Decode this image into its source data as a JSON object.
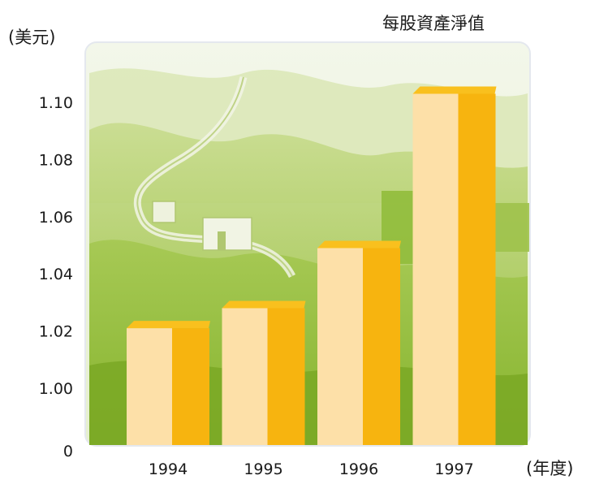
{
  "chart_data": {
    "type": "bar",
    "title": "每股資產淨值",
    "ylabel": "(美元)",
    "xlabel": "(年度)",
    "categories": [
      "1994",
      "1995",
      "1996",
      "1997"
    ],
    "values": [
      1.021,
      1.028,
      1.049,
      1.103
    ],
    "yticks": [
      "0",
      "1.00",
      "1.02",
      "1.04",
      "1.06",
      "1.08",
      "1.10"
    ],
    "ylim": [
      0.985,
      1.115
    ],
    "axis_break": "0 baseline, axis broken between 0 and 1.00",
    "grid": false,
    "legend": "none",
    "colors": {
      "bar_light": "#fde0a8",
      "bar_dark": "#f7b40f",
      "bar_top": "#f9c01e",
      "background_green": "#9cc33c",
      "background_light": "#edf3d9"
    }
  }
}
